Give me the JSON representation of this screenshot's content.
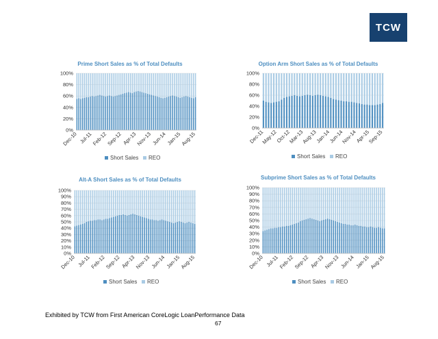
{
  "logo": {
    "text": "TCW"
  },
  "footer": {
    "source": "Exhibited by TCW from First American CoreLogic LoanPerformance Data",
    "page": "67"
  },
  "colors": {
    "short_sales": "#4d8ec0",
    "reo": "#a9cbe4",
    "title": "#4d8ec0",
    "logo_bg": "#17416f"
  },
  "chart_data": [
    {
      "type": "bar",
      "stacked": true,
      "grid": true,
      "legend": "bottom",
      "title": "Prime Short Sales as % of Total Defaults",
      "yticks": [
        "100%",
        "80%",
        "60%",
        "40%",
        "20%",
        "0%"
      ],
      "ylim": [
        0,
        100
      ],
      "xticks": [
        "Dec-10",
        "Jul-11",
        "Feb-12",
        "Sep-12",
        "Apr-13",
        "Nov-13",
        "Jun-14",
        "Jan-15",
        "Aug-15"
      ],
      "series": [
        {
          "name": "Short Sales",
          "values": [
            55,
            56,
            55,
            56,
            57,
            58,
            58,
            59,
            60,
            59,
            60,
            61,
            62,
            61,
            60,
            59,
            60,
            61,
            60,
            59,
            60,
            61,
            62,
            63,
            64,
            65,
            66,
            67,
            66,
            65,
            67,
            68,
            69,
            68,
            67,
            66,
            65,
            64,
            63,
            62,
            61,
            60,
            59,
            58,
            57,
            56,
            57,
            58,
            59,
            60,
            61,
            60,
            59,
            58,
            57,
            58,
            59,
            60,
            59,
            58,
            57,
            56,
            58
          ]
        },
        {
          "name": "REO",
          "values": [
            45,
            44,
            45,
            44,
            43,
            42,
            42,
            41,
            40,
            41,
            40,
            39,
            38,
            39,
            40,
            41,
            40,
            39,
            40,
            41,
            40,
            39,
            38,
            37,
            36,
            35,
            34,
            33,
            34,
            35,
            33,
            32,
            31,
            32,
            33,
            34,
            35,
            36,
            37,
            38,
            39,
            40,
            41,
            42,
            43,
            44,
            43,
            42,
            41,
            40,
            39,
            40,
            41,
            42,
            43,
            42,
            41,
            40,
            41,
            42,
            43,
            44,
            42
          ]
        }
      ]
    },
    {
      "type": "bar",
      "stacked": true,
      "grid": true,
      "legend": "bottom",
      "title": "Option Arm Short Sales as % of Total Defaults",
      "yticks": [
        "100%",
        "80%",
        "60%",
        "40%",
        "20%",
        "0%"
      ],
      "ylim": [
        0,
        100
      ],
      "xticks": [
        "Dec-11",
        "May-12",
        "Oct-12",
        "Mar-13",
        "Aug-13",
        "Jan-14",
        "Jun-14",
        "Nov-14",
        "Apr-15",
        "Sep-15"
      ],
      "series": [
        {
          "name": "Short Sales",
          "values": [
            50,
            48,
            47,
            46,
            47,
            48,
            49,
            52,
            55,
            57,
            58,
            59,
            60,
            59,
            58,
            59,
            60,
            61,
            60,
            59,
            60,
            61,
            60,
            59,
            58,
            57,
            55,
            53,
            52,
            51,
            50,
            49,
            49,
            48,
            48,
            47,
            46,
            45,
            44,
            43,
            43,
            42,
            42,
            42,
            43,
            44,
            46
          ]
        },
        {
          "name": "REO",
          "values": [
            50,
            52,
            53,
            54,
            53,
            52,
            51,
            48,
            45,
            43,
            42,
            41,
            40,
            41,
            42,
            41,
            40,
            39,
            40,
            41,
            40,
            39,
            40,
            41,
            42,
            43,
            45,
            47,
            48,
            49,
            50,
            51,
            51,
            52,
            52,
            53,
            54,
            55,
            56,
            57,
            57,
            58,
            58,
            58,
            57,
            56,
            54
          ]
        }
      ]
    },
    {
      "type": "bar",
      "stacked": true,
      "grid": true,
      "legend": "bottom",
      "title": "Alt-A Short Sales as % of Total Defaults",
      "yticks": [
        "100%",
        "90%",
        "80%",
        "70%",
        "60%",
        "50%",
        "40%",
        "30%",
        "20%",
        "10%",
        "0%"
      ],
      "ylim": [
        0,
        100
      ],
      "xticks": [
        "Dec-10",
        "Jul-11",
        "Feb-12",
        "Sep-12",
        "Apr-13",
        "Nov-13",
        "Jun-14",
        "Jan-15",
        "Aug-15"
      ],
      "series": [
        {
          "name": "Short Sales",
          "values": [
            43,
            44,
            45,
            46,
            47,
            48,
            50,
            51,
            52,
            52,
            53,
            53,
            54,
            54,
            53,
            54,
            55,
            55,
            56,
            57,
            58,
            59,
            60,
            61,
            61,
            62,
            61,
            60,
            61,
            62,
            63,
            62,
            61,
            60,
            59,
            58,
            57,
            56,
            55,
            54,
            54,
            53,
            53,
            52,
            53,
            54,
            53,
            52,
            51,
            50,
            49,
            48,
            49,
            50,
            51,
            50,
            49,
            48,
            49,
            50,
            49,
            48,
            47
          ]
        },
        {
          "name": "REO",
          "values": [
            57,
            56,
            55,
            54,
            53,
            52,
            50,
            49,
            48,
            48,
            47,
            47,
            46,
            46,
            47,
            46,
            45,
            45,
            44,
            43,
            42,
            41,
            40,
            39,
            39,
            38,
            39,
            40,
            39,
            38,
            37,
            38,
            39,
            40,
            41,
            42,
            43,
            44,
            45,
            46,
            46,
            47,
            47,
            48,
            47,
            46,
            47,
            48,
            49,
            50,
            51,
            52,
            51,
            50,
            49,
            50,
            51,
            52,
            51,
            50,
            51,
            52,
            53
          ]
        }
      ]
    },
    {
      "type": "bar",
      "stacked": true,
      "grid": true,
      "legend": "bottom",
      "title": "Subprime Short Sales as % of Total Defaults",
      "yticks": [
        "100%",
        "90%",
        "80%",
        "70%",
        "60%",
        "50%",
        "40%",
        "30%",
        "20%",
        "10%",
        "0%"
      ],
      "ylim": [
        0,
        100
      ],
      "xticks": [
        "Dec-10",
        "Jul-11",
        "Feb-12",
        "Sep-12",
        "Apr-13",
        "Nov-13",
        "Jun-14",
        "Jan-15",
        "Aug-15"
      ],
      "series": [
        {
          "name": "Short Sales",
          "values": [
            34,
            35,
            36,
            37,
            38,
            38,
            39,
            39,
            40,
            40,
            41,
            41,
            42,
            42,
            43,
            44,
            45,
            46,
            47,
            49,
            50,
            51,
            52,
            53,
            54,
            53,
            52,
            51,
            50,
            49,
            50,
            51,
            52,
            53,
            52,
            51,
            50,
            49,
            48,
            47,
            46,
            45,
            45,
            44,
            44,
            43,
            43,
            44,
            43,
            42,
            42,
            41,
            41,
            40,
            40,
            41,
            40,
            39,
            39,
            40,
            39,
            38,
            38
          ]
        },
        {
          "name": "REO",
          "values": [
            66,
            65,
            64,
            63,
            62,
            62,
            61,
            61,
            60,
            60,
            59,
            59,
            58,
            58,
            57,
            56,
            55,
            54,
            53,
            51,
            50,
            49,
            48,
            47,
            46,
            47,
            48,
            49,
            50,
            51,
            50,
            49,
            48,
            47,
            48,
            49,
            50,
            51,
            52,
            53,
            54,
            55,
            55,
            56,
            56,
            57,
            57,
            56,
            57,
            58,
            58,
            59,
            59,
            60,
            60,
            59,
            60,
            61,
            61,
            60,
            61,
            62,
            62
          ]
        }
      ]
    }
  ]
}
